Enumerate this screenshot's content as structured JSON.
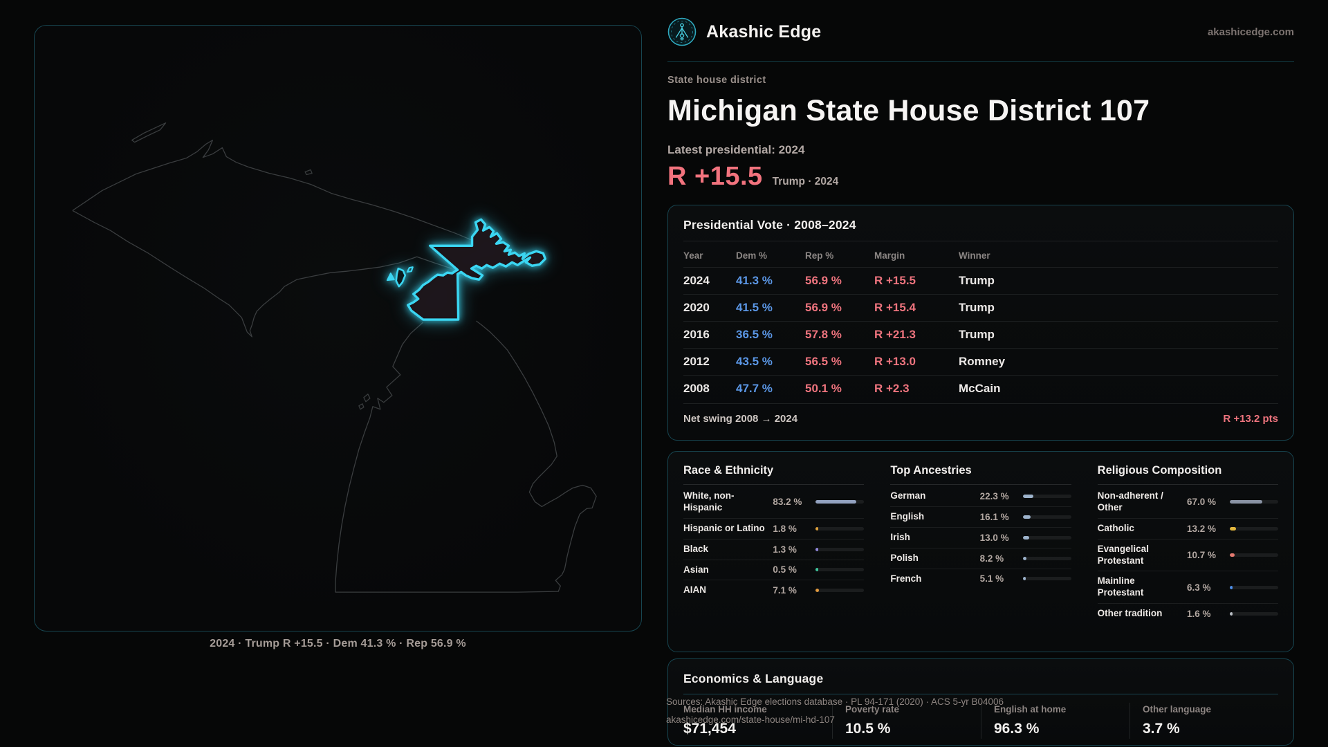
{
  "brand": {
    "name": "Akashic Edge",
    "domain": "akashicedge.com"
  },
  "page": {
    "eyebrow": "State house district",
    "title": "Michigan State House District 107",
    "latest_label": "Latest presidential: 2024",
    "headline_margin": "R +15.5",
    "headline_context": "Trump · 2024"
  },
  "map": {
    "caption": "2024 · Trump R +15.5 · Dem 41.3 % · Rep 56.9 %"
  },
  "presidential": {
    "title": "Presidential Vote · 2008–2024",
    "columns": [
      "Year",
      "Dem %",
      "Rep %",
      "Margin",
      "Winner"
    ],
    "rows": [
      {
        "year": "2024",
        "dem": "41.3 %",
        "rep": "56.9 %",
        "margin": "R +15.5",
        "winner": "Trump"
      },
      {
        "year": "2020",
        "dem": "41.5 %",
        "rep": "56.9 %",
        "margin": "R +15.4",
        "winner": "Trump"
      },
      {
        "year": "2016",
        "dem": "36.5 %",
        "rep": "57.8 %",
        "margin": "R +21.3",
        "winner": "Trump"
      },
      {
        "year": "2012",
        "dem": "43.5 %",
        "rep": "56.5 %",
        "margin": "R +13.0",
        "winner": "Romney"
      },
      {
        "year": "2008",
        "dem": "47.7 %",
        "rep": "50.1 %",
        "margin": "R +2.3",
        "winner": "McCain"
      }
    ],
    "net_swing_label": "Net swing 2008 → 2024",
    "net_swing_value": "R +13.2 pts"
  },
  "demographics": {
    "race": {
      "title": "Race & Ethnicity",
      "rows": [
        {
          "label": "White, non-Hispanic",
          "value": "83.2 %",
          "pct": 83.2,
          "color": "#93a2c0"
        },
        {
          "label": "Hispanic or Latino",
          "value": "1.8 %",
          "pct": 1.8,
          "color": "#dfa23c"
        },
        {
          "label": "Black",
          "value": "1.3 %",
          "pct": 1.3,
          "color": "#9188dc"
        },
        {
          "label": "Asian",
          "value": "0.5 %",
          "pct": 0.5,
          "color": "#3fc79d"
        },
        {
          "label": "AIAN",
          "value": "7.1 %",
          "pct": 7.1,
          "color": "#e29b3f"
        }
      ]
    },
    "ancestries": {
      "title": "Top Ancestries",
      "rows": [
        {
          "label": "German",
          "value": "22.3 %",
          "pct": 22.3,
          "color": "#9db3cc"
        },
        {
          "label": "English",
          "value": "16.1 %",
          "pct": 16.1,
          "color": "#9db3cc"
        },
        {
          "label": "Irish",
          "value": "13.0 %",
          "pct": 13.0,
          "color": "#9db3cc"
        },
        {
          "label": "Polish",
          "value": "8.2 %",
          "pct": 8.2,
          "color": "#9db3cc"
        },
        {
          "label": "French",
          "value": "5.1 %",
          "pct": 5.1,
          "color": "#9db3cc"
        }
      ]
    },
    "religion": {
      "title": "Religious Composition",
      "rows": [
        {
          "label": "Non-adherent / Other",
          "value": "67.0 %",
          "pct": 67.0,
          "color": "#8a93a4"
        },
        {
          "label": "Catholic",
          "value": "13.2 %",
          "pct": 13.2,
          "color": "#e3b83e"
        },
        {
          "label": "Evangelical Protestant",
          "value": "10.7 %",
          "pct": 10.7,
          "color": "#e57a70"
        },
        {
          "label": "Mainline Protestant",
          "value": "6.3 %",
          "pct": 6.3,
          "color": "#4d8ee8"
        },
        {
          "label": "Other tradition",
          "value": "1.6 %",
          "pct": 1.6,
          "color": "#b9bec4"
        }
      ]
    }
  },
  "economics": {
    "title": "Economics & Language",
    "stats": [
      {
        "label": "Median HH income",
        "value": "$71,454"
      },
      {
        "label": "Poverty rate",
        "value": "10.5 %"
      },
      {
        "label": "English at home",
        "value": "96.3 %"
      },
      {
        "label": "Other language",
        "value": "3.7 %"
      }
    ]
  },
  "footer": {
    "line1": "Sources: Akashic Edge elections database · PL 94-171 (2020) · ACS 5-yr B04006",
    "line2": "akashicedge.com/state-house/mi-hd-107"
  },
  "colors": {
    "accent_cyan": "#3bd6f2",
    "dem_blue": "#5b97e6",
    "rep_red": "#ee747e",
    "panel_border": "#174550",
    "state_outline": "#3d4042"
  }
}
